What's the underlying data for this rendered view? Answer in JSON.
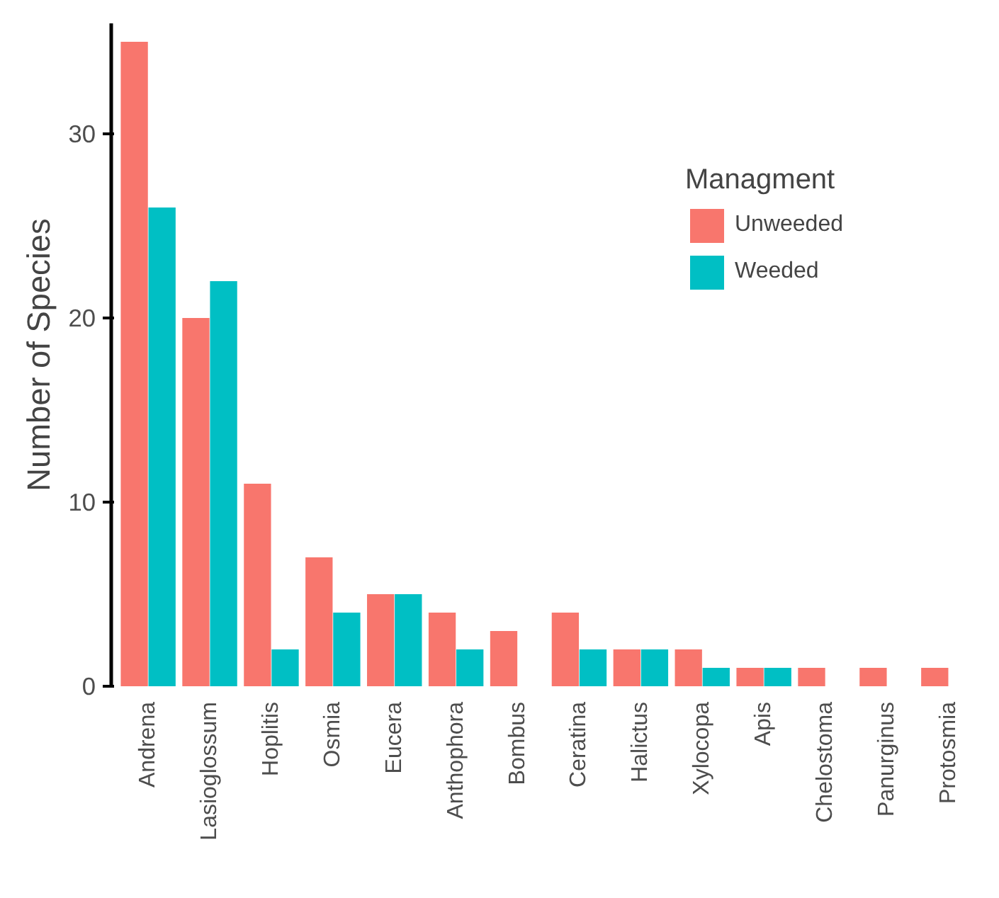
{
  "chart_data": {
    "type": "bar",
    "ylabel": "Number of Species",
    "legend_title": "Managment",
    "legend": "top right",
    "grid": false,
    "categories": [
      "Andrena",
      "Lasioglossum",
      "Hoplitis",
      "Osmia",
      "Eucera",
      "Anthophora",
      "Bombus",
      "Ceratina",
      "Halictus",
      "Xylocopa",
      "Apis",
      "Chelostoma",
      "Panurginus",
      "Protosmia"
    ],
    "series": [
      {
        "name": "Unweeded",
        "color": "#f8766d",
        "values": [
          35,
          20,
          11,
          7,
          5,
          4,
          3,
          4,
          2,
          2,
          1,
          1,
          1,
          1
        ]
      },
      {
        "name": "Weeded",
        "color": "#00bfc4",
        "values": [
          26,
          22,
          2,
          4,
          5,
          2,
          0,
          2,
          2,
          1,
          1,
          0,
          0,
          0
        ]
      }
    ],
    "ylim": [
      0,
      36
    ],
    "yticks": [
      0,
      10,
      20,
      30
    ]
  }
}
